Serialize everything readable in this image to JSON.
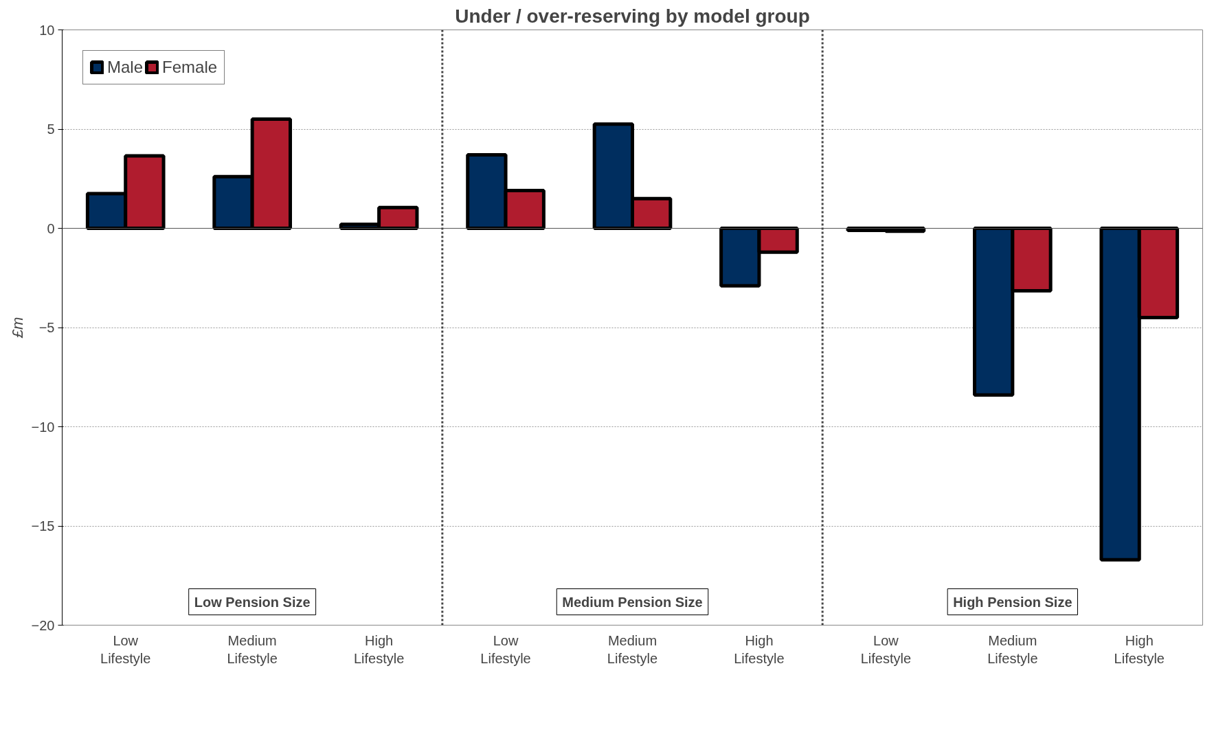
{
  "chart_data": {
    "type": "bar",
    "title": "Under / over-reserving by model group",
    "ylabel": "£m",
    "categories": [
      "Low\nLifestyle",
      "Medium\nLifestyle",
      "High\nLifestyle",
      "Low\nLifestyle",
      "Medium\nLifestyle",
      "High\nLifestyle",
      "Low\nLifestyle",
      "Medium\nLifestyle",
      "High\nLifestyle"
    ],
    "series": [
      {
        "name": "Male",
        "color": "#002e5f",
        "values": [
          1.75,
          2.6,
          0.2,
          3.7,
          5.25,
          -2.9,
          -0.1,
          -8.4,
          -16.7
        ]
      },
      {
        "name": "Female",
        "color": "#b01c2e",
        "values": [
          3.65,
          5.5,
          1.05,
          1.9,
          1.5,
          -1.2,
          -0.15,
          -3.15,
          -4.5
        ]
      }
    ],
    "ylim": [
      -20,
      10
    ],
    "yticks": [
      -20,
      -15,
      -10,
      -5,
      0,
      5,
      10
    ],
    "grid": "y",
    "legend": "top left",
    "annotations": [
      "Low Pension Size",
      "Medium Pension Size",
      "High Pension Size"
    ]
  }
}
